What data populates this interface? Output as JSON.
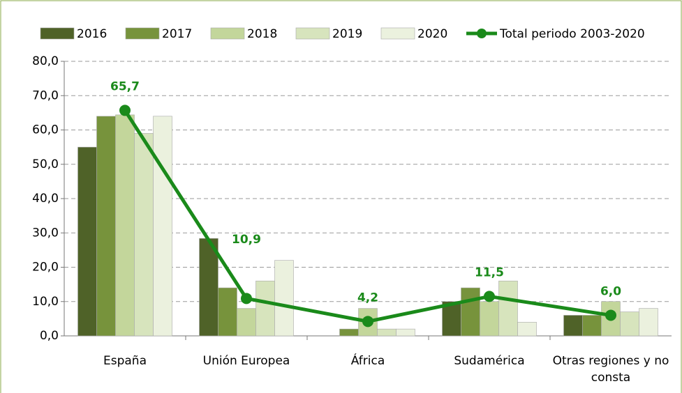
{
  "chart_data": {
    "type": "bar",
    "categories": [
      "España",
      "Unión Europea",
      "África",
      "Sudamérica",
      "Otras regiones y no consta"
    ],
    "series": [
      {
        "name": "2016",
        "color": "#4f6228",
        "values": [
          55,
          28.4,
          0,
          10,
          6
        ]
      },
      {
        "name": "2017",
        "color": "#77933c",
        "values": [
          64,
          14,
          2,
          14,
          6
        ]
      },
      {
        "name": "2018",
        "color": "#c3d69b",
        "values": [
          64.4,
          8,
          8,
          10,
          10
        ]
      },
      {
        "name": "2019",
        "color": "#d7e4bd",
        "values": [
          59,
          16,
          2,
          16,
          7
        ]
      },
      {
        "name": "2020",
        "color": "#ebf1de",
        "values": [
          64,
          22,
          2,
          4,
          8
        ]
      },
      {
        "name": "Total periodo 2003-2020",
        "type": "line",
        "color": "#1a8a1a",
        "values": [
          65.7,
          10.9,
          4.2,
          11.5,
          6.0
        ],
        "value_labels": [
          "65,7",
          "10,9",
          "4,2",
          "11,5",
          "6,0"
        ]
      }
    ],
    "ylim": [
      0,
      80
    ],
    "yticks": [
      {
        "value": 0,
        "label": "0,0"
      },
      {
        "value": 10,
        "label": "10,0"
      },
      {
        "value": 20,
        "label": "20,0"
      },
      {
        "value": 30,
        "label": "30,0"
      },
      {
        "value": 40,
        "label": "40,0"
      },
      {
        "value": 50,
        "label": "50,0"
      },
      {
        "value": 60,
        "label": "60,0"
      },
      {
        "value": 70,
        "label": "70,0"
      },
      {
        "value": 80,
        "label": "80,0"
      }
    ],
    "grid": true,
    "legend": "top"
  }
}
